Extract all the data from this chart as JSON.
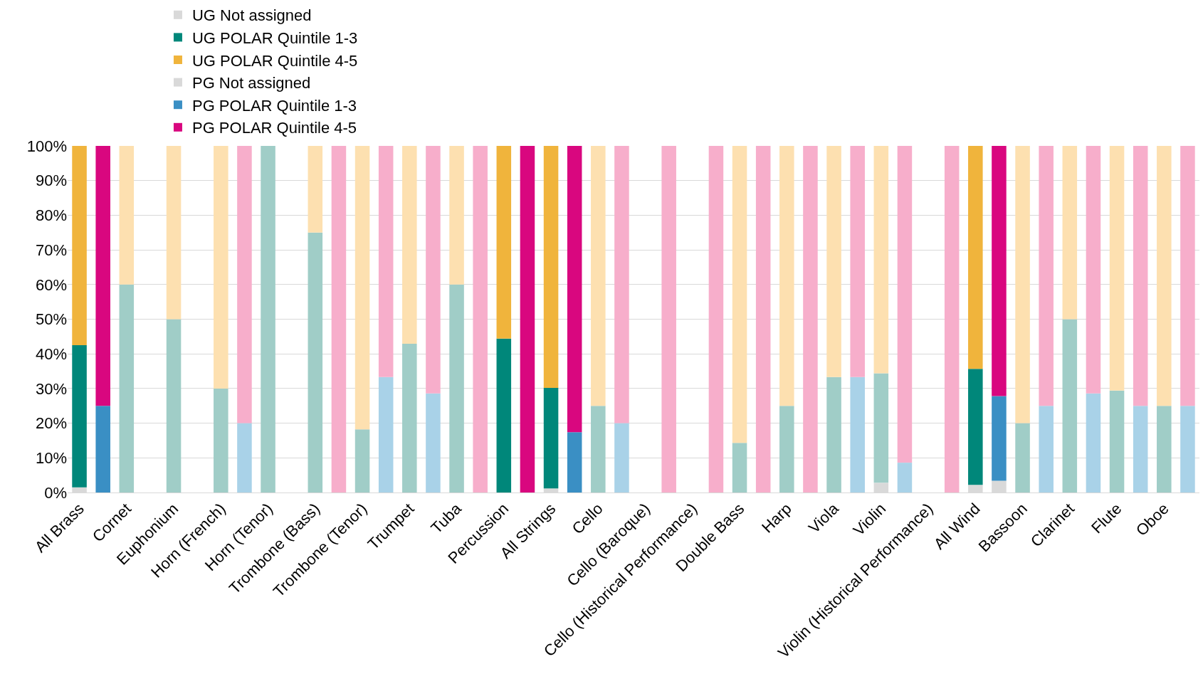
{
  "chart_data": {
    "type": "bar",
    "stacked": true,
    "categories": [
      "All Brass",
      null,
      "Cornet",
      null,
      "Euphonium",
      null,
      "Horn (French)",
      null,
      "Horn (Tenor)",
      null,
      "Trombone (Bass)",
      null,
      "Trombone (Tenor)",
      null,
      "Trumpet",
      null,
      "Tuba",
      null,
      "Percussion",
      null,
      "All Strings",
      null,
      "Cello",
      null,
      "Cello (Baroque)",
      null,
      "Cello (Historical Performance)",
      null,
      "Double Bass",
      null,
      "Harp",
      null,
      "Viola",
      null,
      "Violin",
      null,
      "Violin (Historical Performance)",
      null,
      "All Wind",
      null,
      "Bassoon",
      null,
      "Clarinet",
      null,
      "Flute",
      null,
      "Oboe",
      null
    ],
    "series": [
      {
        "name": "UG Not assigned",
        "colors": [
          "#d9d9d9",
          "#d9d9d9",
          "#d9d9d9",
          "#d9d9d9",
          "#d9d9d9",
          "#d9d9d9",
          "#d9d9d9",
          "#d9d9d9",
          "#d9d9d9",
          "#d9d9d9",
          "#d9d9d9",
          "#d9d9d9",
          "#d9d9d9",
          "#d9d9d9",
          "#d9d9d9",
          "#d9d9d9",
          "#d9d9d9",
          "#d9d9d9",
          "#d9d9d9",
          "#d9d9d9",
          "#d9d9d9",
          "#d9d9d9",
          "#d9d9d9",
          "#d9d9d9",
          "#d9d9d9",
          "#d9d9d9",
          "#d9d9d9",
          "#d9d9d9",
          "#d9d9d9",
          "#d9d9d9",
          "#d9d9d9",
          "#d9d9d9",
          "#d9d9d9",
          "#d9d9d9",
          "#d9d9d9",
          "#d9d9d9",
          "#d9d9d9",
          "#d9d9d9",
          "#d9d9d9",
          "#d9d9d9",
          "#d9d9d9",
          "#d9d9d9",
          "#d9d9d9",
          "#d9d9d9",
          "#d9d9d9",
          "#d9d9d9",
          "#d9d9d9",
          "#d9d9d9"
        ],
        "values": [
          1.5,
          null,
          0,
          null,
          0,
          null,
          0,
          null,
          0,
          null,
          0,
          null,
          0,
          null,
          0,
          null,
          0,
          null,
          0,
          null,
          1.2,
          null,
          0,
          null,
          null,
          null,
          null,
          null,
          0,
          null,
          0,
          null,
          0,
          null,
          2.8,
          null,
          null,
          null,
          2.2,
          null,
          0,
          null,
          0,
          null,
          0,
          null,
          0,
          null
        ]
      },
      {
        "name": "UG POLAR Quintile 1-3",
        "colors": [
          "#00877a",
          "#00877a",
          "#a0cdc7",
          "#a0cdc7",
          "#a0cdc7",
          "#a0cdc7",
          "#a0cdc7",
          "#a0cdc7",
          "#a0cdc7",
          "#a0cdc7",
          "#a0cdc7",
          "#a0cdc7",
          "#a0cdc7",
          "#a0cdc7",
          "#a0cdc7",
          "#a0cdc7",
          "#a0cdc7",
          "#a0cdc7",
          "#00877a",
          "#00877a",
          "#00877a",
          "#00877a",
          "#a0cdc7",
          "#a0cdc7",
          "#a0cdc7",
          "#a0cdc7",
          "#a0cdc7",
          "#a0cdc7",
          "#a0cdc7",
          "#a0cdc7",
          "#a0cdc7",
          "#a0cdc7",
          "#a0cdc7",
          "#a0cdc7",
          "#a0cdc7",
          "#a0cdc7",
          "#a0cdc7",
          "#a0cdc7",
          "#00877a",
          "#00877a",
          "#a0cdc7",
          "#a0cdc7",
          "#a0cdc7",
          "#a0cdc7",
          "#a0cdc7",
          "#a0cdc7",
          "#a0cdc7",
          "#a0cdc7"
        ],
        "values": [
          41,
          null,
          60,
          null,
          50,
          null,
          30,
          null,
          100,
          null,
          75,
          null,
          18.2,
          null,
          42.9,
          null,
          60,
          null,
          44.4,
          null,
          29,
          null,
          25,
          null,
          null,
          null,
          null,
          null,
          14.3,
          null,
          25,
          null,
          33.3,
          null,
          31.6,
          null,
          null,
          null,
          33.5,
          null,
          20,
          null,
          50,
          null,
          29.4,
          null,
          25,
          null
        ]
      },
      {
        "name": "UG POLAR Quintile 4-5",
        "colors": [
          "#f0b43c",
          "#f0b43c",
          "#fde0b0",
          "#fde0b0",
          "#fde0b0",
          "#fde0b0",
          "#fde0b0",
          "#fde0b0",
          "#fde0b0",
          "#fde0b0",
          "#fde0b0",
          "#fde0b0",
          "#fde0b0",
          "#fde0b0",
          "#fde0b0",
          "#fde0b0",
          "#fde0b0",
          "#fde0b0",
          "#f0b43c",
          "#f0b43c",
          "#f0b43c",
          "#f0b43c",
          "#fde0b0",
          "#fde0b0",
          "#fde0b0",
          "#fde0b0",
          "#fde0b0",
          "#fde0b0",
          "#fde0b0",
          "#fde0b0",
          "#fde0b0",
          "#fde0b0",
          "#fde0b0",
          "#fde0b0",
          "#fde0b0",
          "#fde0b0",
          "#fde0b0",
          "#fde0b0",
          "#f0b43c",
          "#f0b43c",
          "#fde0b0",
          "#fde0b0",
          "#fde0b0",
          "#fde0b0",
          "#fde0b0",
          "#fde0b0",
          "#fde0b0",
          "#fde0b0"
        ],
        "values": [
          57.5,
          null,
          40,
          null,
          50,
          null,
          70,
          null,
          0,
          null,
          25,
          null,
          81.8,
          null,
          57.1,
          null,
          40,
          null,
          55.6,
          null,
          69.8,
          null,
          75,
          null,
          null,
          null,
          null,
          null,
          85.7,
          null,
          75,
          null,
          66.7,
          null,
          65.6,
          null,
          null,
          null,
          64.3,
          null,
          80,
          null,
          50,
          null,
          70.6,
          null,
          75,
          null
        ]
      },
      {
        "name": "PG Not assigned",
        "colors": [
          "#d9d9d9",
          "#d9d9d9",
          "#d9d9d9",
          "#d9d9d9",
          "#d9d9d9",
          "#d9d9d9",
          "#d9d9d9",
          "#d9d9d9",
          "#d9d9d9",
          "#d9d9d9",
          "#d9d9d9",
          "#d9d9d9",
          "#d9d9d9",
          "#d9d9d9",
          "#d9d9d9",
          "#d9d9d9",
          "#d9d9d9",
          "#d9d9d9",
          "#d9d9d9",
          "#d9d9d9",
          "#d9d9d9",
          "#d9d9d9",
          "#d9d9d9",
          "#d9d9d9",
          "#d9d9d9",
          "#d9d9d9",
          "#d9d9d9",
          "#d9d9d9",
          "#d9d9d9",
          "#d9d9d9",
          "#d9d9d9",
          "#d9d9d9",
          "#d9d9d9",
          "#d9d9d9",
          "#d9d9d9",
          "#d9d9d9",
          "#d9d9d9",
          "#d9d9d9",
          "#d9d9d9",
          "#d9d9d9",
          "#d9d9d9",
          "#d9d9d9",
          "#d9d9d9",
          "#d9d9d9",
          "#d9d9d9",
          "#d9d9d9",
          "#d9d9d9",
          "#d9d9d9"
        ],
        "values": [
          null,
          0,
          null,
          null,
          null,
          null,
          null,
          0,
          null,
          null,
          null,
          0,
          null,
          0,
          null,
          0,
          null,
          0,
          null,
          0,
          null,
          0,
          null,
          0,
          null,
          0,
          null,
          0,
          null,
          0,
          null,
          0,
          null,
          0,
          null,
          0,
          null,
          0,
          null,
          3.4,
          null,
          0,
          null,
          0,
          null,
          0,
          null,
          0
        ]
      },
      {
        "name": "PG POLAR Quintile 1-3",
        "colors": [
          "#3a8fc4",
          "#3a8fc4",
          "#a9d2e8",
          "#a9d2e8",
          "#a9d2e8",
          "#a9d2e8",
          "#a9d2e8",
          "#a9d2e8",
          "#a9d2e8",
          "#a9d2e8",
          "#a9d2e8",
          "#a9d2e8",
          "#a9d2e8",
          "#a9d2e8",
          "#a9d2e8",
          "#a9d2e8",
          "#a9d2e8",
          "#a9d2e8",
          "#3a8fc4",
          "#3a8fc4",
          "#3a8fc4",
          "#3a8fc4",
          "#a9d2e8",
          "#a9d2e8",
          "#a9d2e8",
          "#a9d2e8",
          "#a9d2e8",
          "#a9d2e8",
          "#a9d2e8",
          "#a9d2e8",
          "#a9d2e8",
          "#a9d2e8",
          "#a9d2e8",
          "#a9d2e8",
          "#a9d2e8",
          "#a9d2e8",
          "#a9d2e8",
          "#a9d2e8",
          "#3a8fc4",
          "#3a8fc4",
          "#a9d2e8",
          "#a9d2e8",
          "#a9d2e8",
          "#a9d2e8",
          "#a9d2e8",
          "#a9d2e8",
          "#a9d2e8",
          "#a9d2e8"
        ],
        "values": [
          null,
          25,
          null,
          null,
          null,
          null,
          null,
          20,
          null,
          null,
          null,
          0,
          null,
          33.3,
          null,
          28.6,
          null,
          0,
          null,
          0,
          null,
          17.4,
          null,
          20,
          null,
          0,
          null,
          0,
          null,
          0,
          null,
          0,
          null,
          33.3,
          null,
          8.6,
          null,
          0,
          null,
          24.4,
          null,
          25,
          null,
          28.6,
          null,
          25,
          null,
          25
        ]
      },
      {
        "name": "PG POLAR Quintile 4-5",
        "colors": [
          "#d9077f",
          "#d9077f",
          "#f7aecb",
          "#f7aecb",
          "#f7aecb",
          "#f7aecb",
          "#f7aecb",
          "#f7aecb",
          "#f7aecb",
          "#f7aecb",
          "#f7aecb",
          "#f7aecb",
          "#f7aecb",
          "#f7aecb",
          "#f7aecb",
          "#f7aecb",
          "#f7aecb",
          "#f7aecb",
          "#d9077f",
          "#d9077f",
          "#d9077f",
          "#d9077f",
          "#f7aecb",
          "#f7aecb",
          "#f7aecb",
          "#f7aecb",
          "#f7aecb",
          "#f7aecb",
          "#f7aecb",
          "#f7aecb",
          "#f7aecb",
          "#f7aecb",
          "#f7aecb",
          "#f7aecb",
          "#f7aecb",
          "#f7aecb",
          "#f7aecb",
          "#f7aecb",
          "#d9077f",
          "#d9077f",
          "#f7aecb",
          "#f7aecb",
          "#f7aecb",
          "#f7aecb",
          "#f7aecb",
          "#f7aecb",
          "#f7aecb",
          "#f7aecb"
        ],
        "values": [
          null,
          75,
          null,
          null,
          null,
          null,
          null,
          80,
          null,
          null,
          null,
          100,
          null,
          66.7,
          null,
          71.4,
          null,
          100,
          null,
          100,
          null,
          82.6,
          null,
          80,
          null,
          100,
          null,
          100,
          null,
          100,
          null,
          100,
          null,
          66.7,
          null,
          91.4,
          null,
          100,
          null,
          72.2,
          null,
          75,
          null,
          71.4,
          null,
          75,
          null,
          75
        ]
      }
    ],
    "ylim": [
      0,
      100
    ],
    "yticks": [
      {
        "value": 0,
        "label": "0%"
      },
      {
        "value": 10,
        "label": "10%"
      },
      {
        "value": 20,
        "label": "20%"
      },
      {
        "value": 30,
        "label": "30%"
      },
      {
        "value": 40,
        "label": "40%"
      },
      {
        "value": 50,
        "label": "50%"
      },
      {
        "value": 60,
        "label": "60%"
      },
      {
        "value": 70,
        "label": "70%"
      },
      {
        "value": 80,
        "label": "80%"
      },
      {
        "value": 90,
        "label": "90%"
      },
      {
        "value": 100,
        "label": "100%"
      }
    ],
    "grid": "y",
    "legend": "top"
  }
}
